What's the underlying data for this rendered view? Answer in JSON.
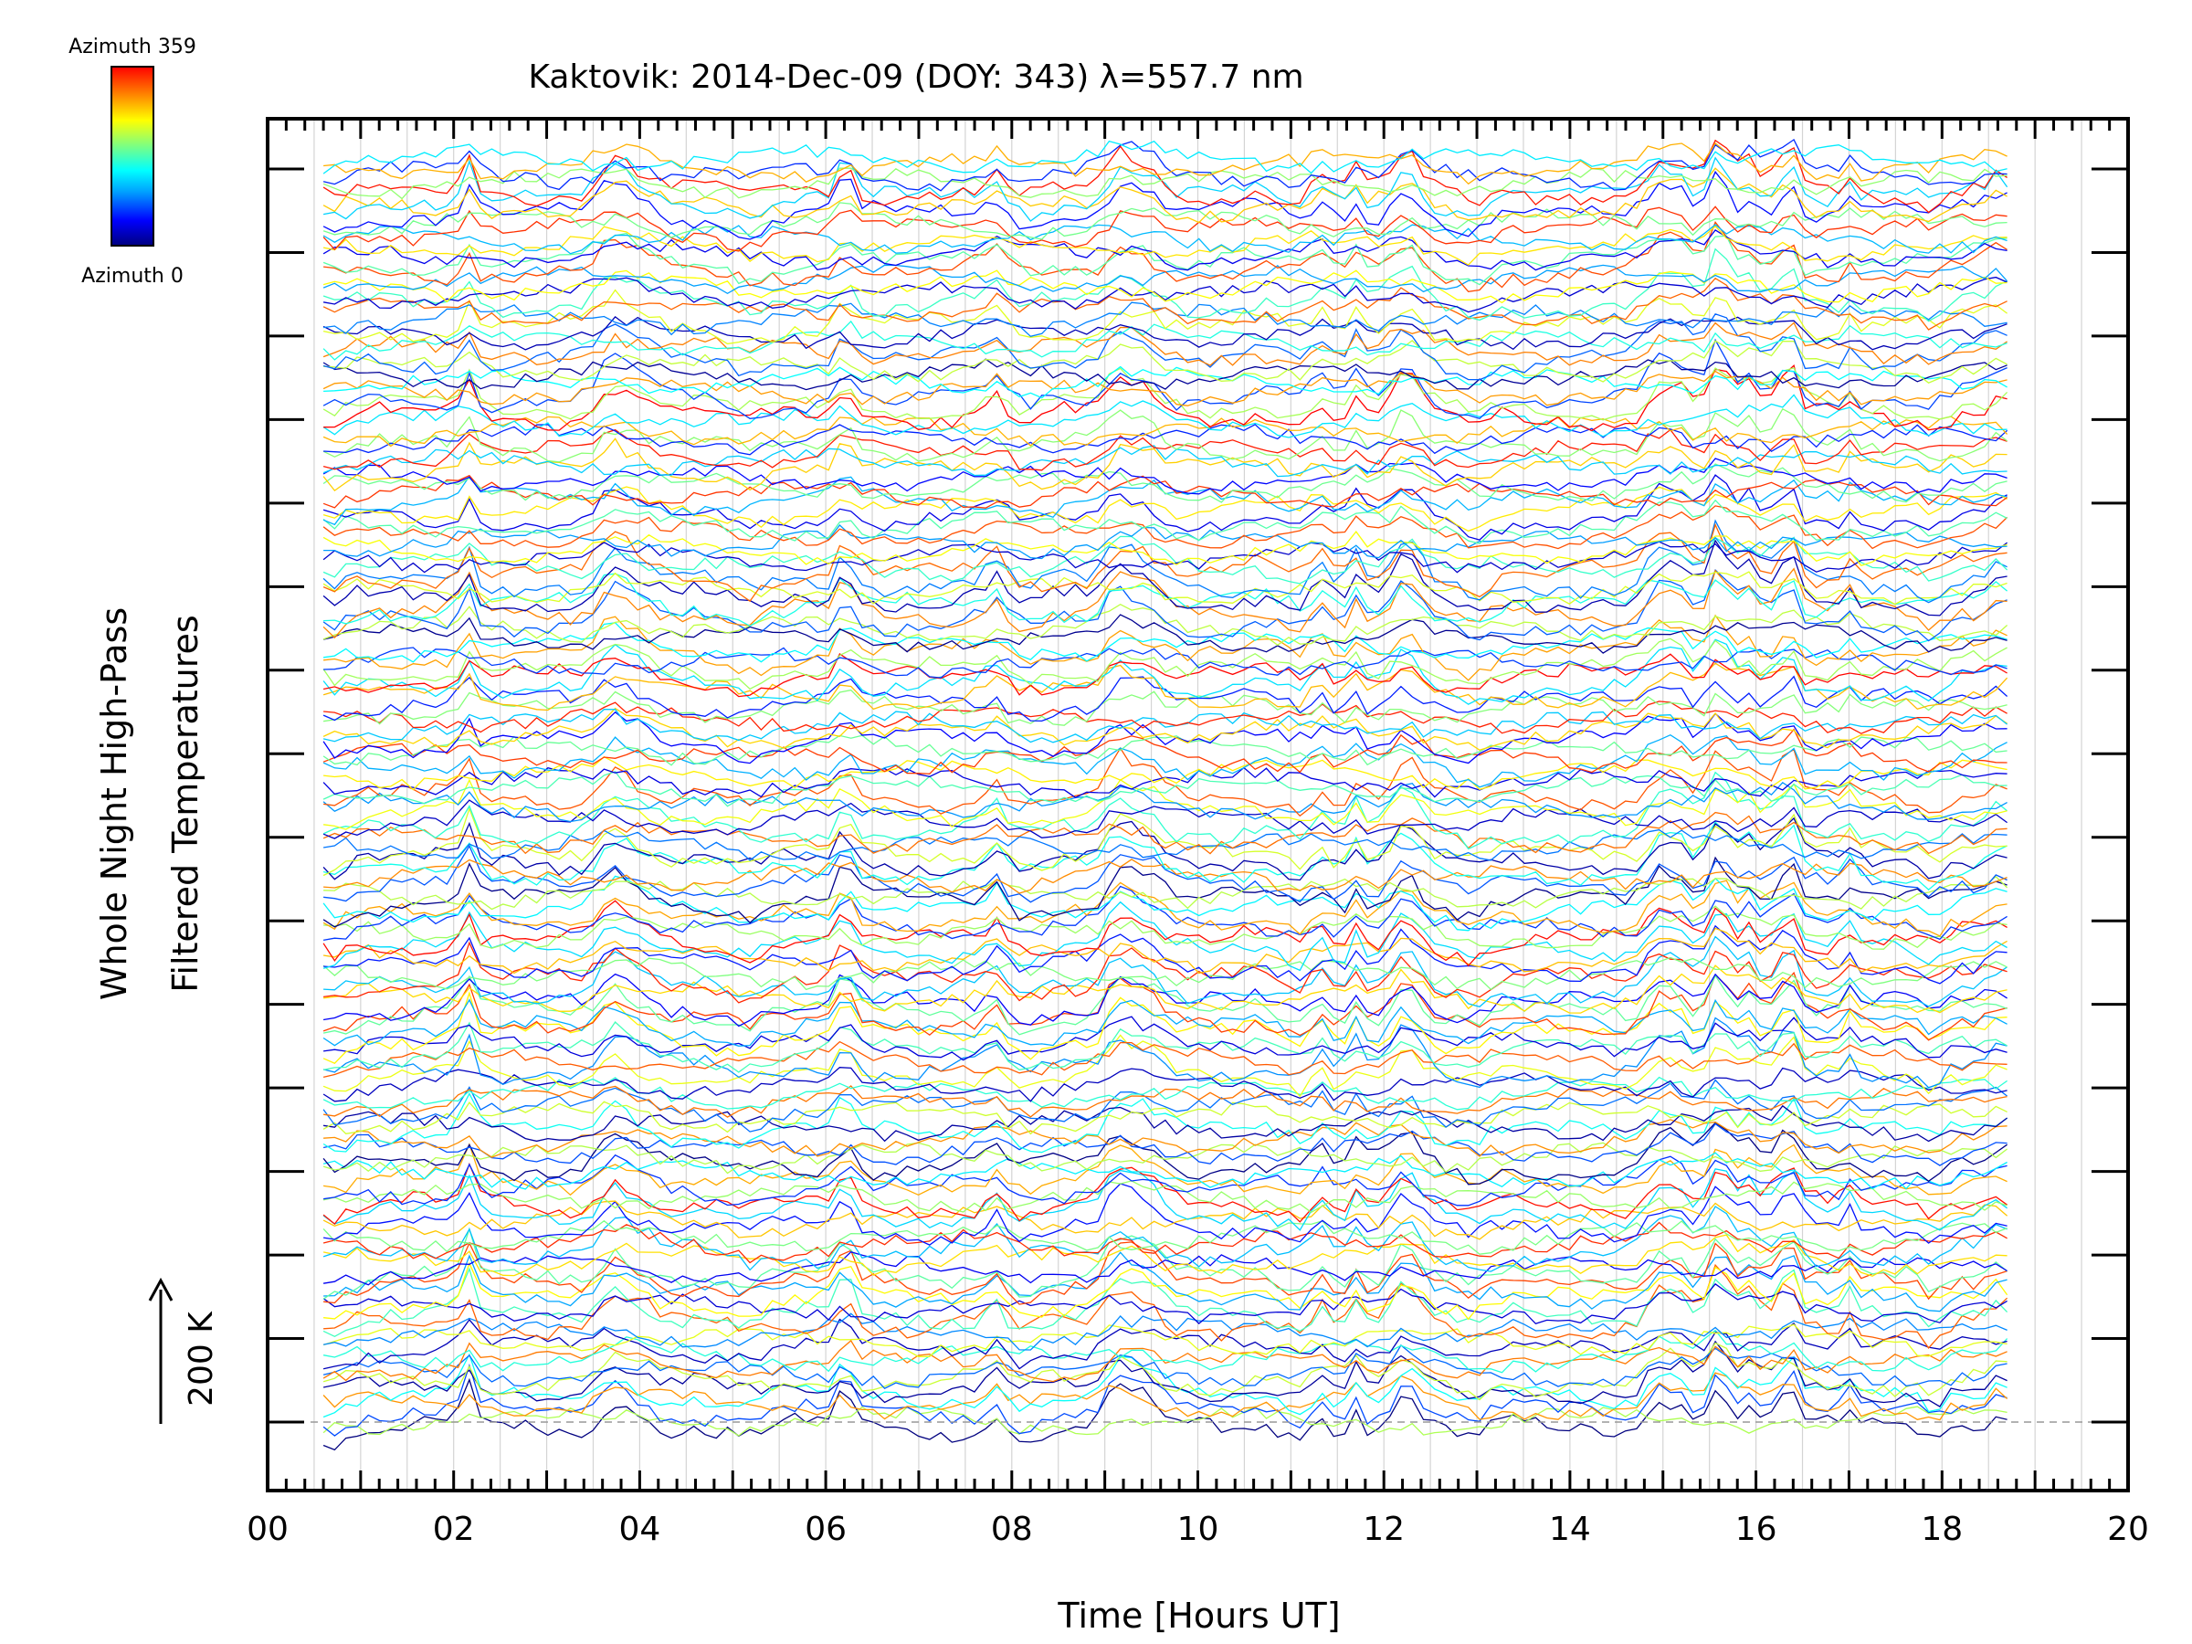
{
  "chart_data": {
    "type": "line",
    "title": "Kaktovik: 2014-Dec-09 (DOY: 343) λ=557.7 nm",
    "xlabel": "Time [Hours UT]",
    "ylabel_line1": "Whole Night High-Pass",
    "ylabel_line2": "Filtered Temperatures",
    "xlim": [
      0,
      20
    ],
    "x_tick_labels": [
      "00",
      "02",
      "04",
      "06",
      "08",
      "10",
      "12",
      "14",
      "16",
      "18",
      "20"
    ],
    "x_tick_values": [
      0,
      2,
      4,
      6,
      8,
      10,
      12,
      14,
      16,
      18,
      20
    ],
    "time_range": [
      0.6,
      18.7
    ],
    "n_azimuth_traces": 160,
    "n_y_ticks": 16,
    "scale_bar": {
      "label": "200 K",
      "value_K": 200
    },
    "colorbar": {
      "top_label": "Azimuth 359",
      "bottom_label": "Azimuth 0",
      "range": [
        0,
        359
      ],
      "stops": [
        "#00007f",
        "#0000ff",
        "#00a0ff",
        "#00ffff",
        "#7fff7f",
        "#ffff00",
        "#ff7f00",
        "#ff0000"
      ]
    },
    "grid": "vertical-lines",
    "baseline_dashed": true
  }
}
